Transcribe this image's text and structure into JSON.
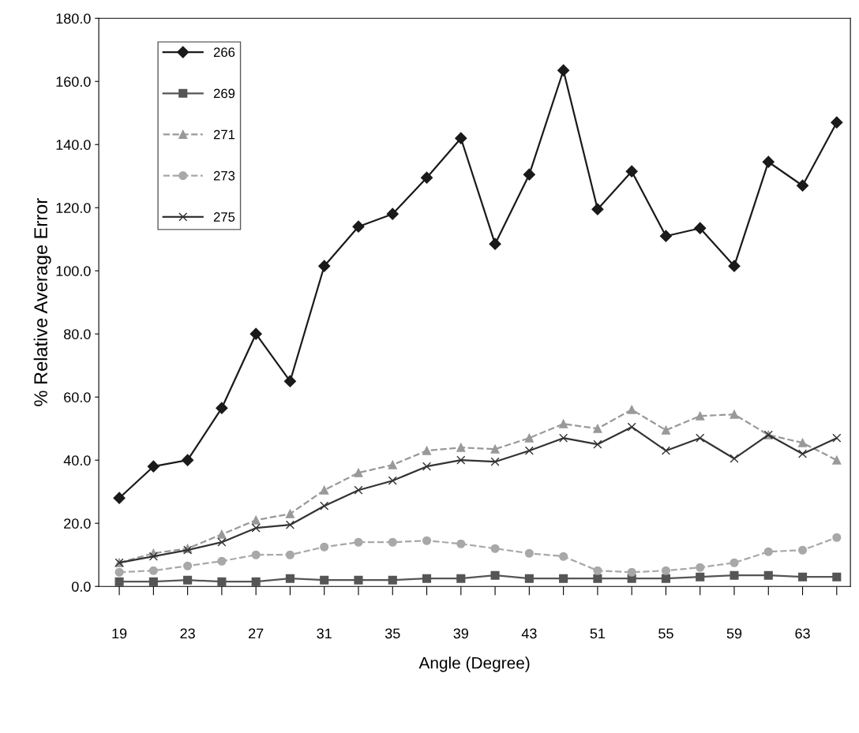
{
  "chart_data": {
    "type": "line",
    "xlabel": "Angle (Degree)",
    "ylabel": "% Relative Average Error",
    "categories": [
      "19",
      null,
      "23",
      null,
      "27",
      null,
      "31",
      null,
      "35",
      null,
      "39",
      null,
      "43",
      null,
      "51",
      null,
      "55",
      null,
      "59",
      null,
      "63",
      null
    ],
    "series": [
      {
        "name": "266",
        "color": "#1a1a1a",
        "marker": "diamond",
        "line_style": "solid",
        "values": [
          28,
          38,
          40,
          56.5,
          80,
          65,
          101.5,
          114,
          118,
          129.5,
          142,
          108.5,
          130.5,
          163.5,
          119.5,
          131.5,
          111,
          113.5,
          101.5,
          134.5,
          127,
          147
        ]
      },
      {
        "name": "269",
        "color": "#555555",
        "marker": "square",
        "line_style": "solid",
        "values": [
          1.5,
          1.5,
          2,
          1.5,
          1.5,
          2.5,
          2,
          2,
          2,
          2.5,
          2.5,
          3.5,
          2.5,
          2.5,
          2.5,
          2.5,
          2.5,
          3,
          3.5,
          3.5,
          3,
          3
        ]
      },
      {
        "name": "271",
        "color": "#999999",
        "marker": "triangle",
        "line_style": "dashed",
        "values": [
          7.5,
          10.5,
          12,
          16.5,
          21,
          23,
          30.5,
          36,
          38.5,
          43,
          44,
          43.5,
          47,
          51.5,
          50,
          56,
          49.5,
          54,
          54.5,
          48,
          45.5,
          40
        ]
      },
      {
        "name": "273",
        "color": "#a8a8a8",
        "marker": "circle",
        "line_style": "dashed",
        "values": [
          4.5,
          5,
          6.5,
          8,
          10,
          10,
          12.5,
          14,
          14,
          14.5,
          13.5,
          12,
          10.5,
          9.5,
          5,
          4.5,
          5,
          6,
          7.5,
          11,
          11.5,
          15.5
        ]
      },
      {
        "name": "275",
        "color": "#333333",
        "marker": "cross",
        "line_style": "solid",
        "values": [
          7.5,
          9.5,
          11.5,
          14,
          18.5,
          19.5,
          25.5,
          30.5,
          33.5,
          38,
          40,
          39.5,
          43,
          47,
          45,
          50.5,
          43,
          47,
          40.5,
          48,
          42,
          47
        ]
      }
    ],
    "ylim": [
      0,
      180
    ],
    "yticks": [
      {
        "value": 0,
        "label": "0.0"
      },
      {
        "value": 20,
        "label": "20.0"
      },
      {
        "value": 40,
        "label": "40.0"
      },
      {
        "value": 60,
        "label": "60.0"
      },
      {
        "value": 80,
        "label": "80.0"
      },
      {
        "value": 100,
        "label": "100.0"
      },
      {
        "value": 120,
        "label": "120.0"
      },
      {
        "value": 140,
        "label": "140.0"
      },
      {
        "value": 160,
        "label": "160.0"
      },
      {
        "value": 180,
        "label": "180.0"
      }
    ],
    "legend": "top left",
    "grid": false
  }
}
